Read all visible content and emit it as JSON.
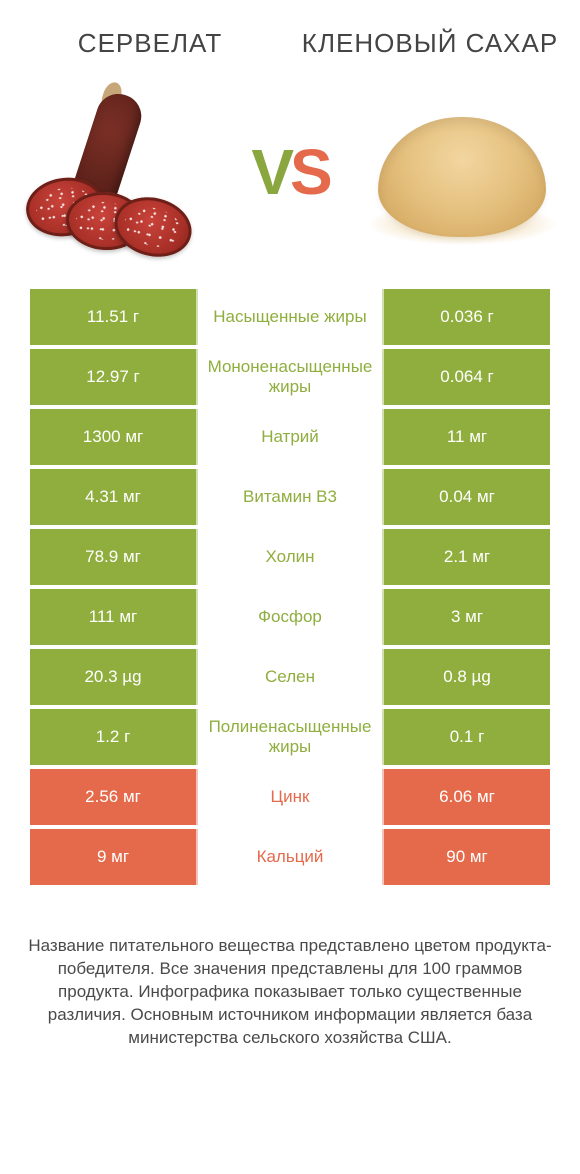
{
  "colors": {
    "green": "#8fae3e",
    "orange": "#e56a4b",
    "text": "#4a4a4a",
    "bg": "#ffffff"
  },
  "left_title": "СЕРВЕЛАТ",
  "right_title": "КЛЕНОВЫЙ САХАР",
  "vs": {
    "v": "V",
    "s": "S"
  },
  "footnote": "Название питательного вещества представлено цветом продукта-победителя.\nВсе значения представлены для 100 граммов продукта.\nИнфографика показывает только существенные различия.\nОсновным источником информации является база министерства сельского хозяйства США.",
  "rows": [
    {
      "left": "11.51 г",
      "label": "Насыщенные жиры",
      "right": "0.036 г",
      "winner": "left"
    },
    {
      "left": "12.97 г",
      "label": "Мононенасыщенные жиры",
      "right": "0.064 г",
      "winner": "left"
    },
    {
      "left": "1300 мг",
      "label": "Натрий",
      "right": "11 мг",
      "winner": "left"
    },
    {
      "left": "4.31 мг",
      "label": "Витамин B3",
      "right": "0.04 мг",
      "winner": "left"
    },
    {
      "left": "78.9 мг",
      "label": "Холин",
      "right": "2.1 мг",
      "winner": "left"
    },
    {
      "left": "111 мг",
      "label": "Фосфор",
      "right": "3 мг",
      "winner": "left"
    },
    {
      "left": "20.3 µg",
      "label": "Селен",
      "right": "0.8 µg",
      "winner": "left"
    },
    {
      "left": "1.2 г",
      "label": "Полиненасыщенные жиры",
      "right": "0.1 г",
      "winner": "left"
    },
    {
      "left": "2.56 мг",
      "label": "Цинк",
      "right": "6.06 мг",
      "winner": "right"
    },
    {
      "left": "9 мг",
      "label": "Кальций",
      "right": "90 мг",
      "winner": "right"
    }
  ]
}
